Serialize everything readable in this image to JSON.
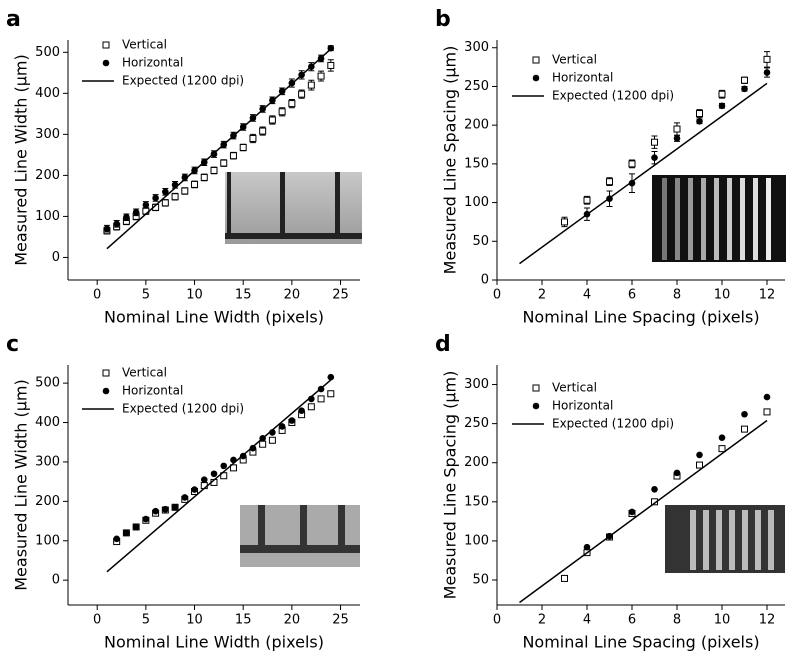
{
  "chart_data": [
    {
      "type": "scatter",
      "panel_label": "a",
      "x_label": "Nominal Line Width (pixels)",
      "y_label": "Measured Line Width (µm)",
      "xlim": [
        -3,
        27
      ],
      "xticks": [
        0,
        5,
        10,
        15,
        20,
        25
      ],
      "ylim": [
        -55,
        530
      ],
      "yticks": [
        0,
        100,
        200,
        300,
        400,
        500
      ],
      "series": [
        {
          "name": "Vertical",
          "marker": "open-square",
          "color": "#000000",
          "x": [
            1,
            2,
            3,
            4,
            5,
            6,
            7,
            8,
            9,
            10,
            11,
            12,
            13,
            14,
            15,
            16,
            17,
            18,
            19,
            20,
            21,
            22,
            23,
            24
          ],
          "values": [
            65,
            75,
            88,
            100,
            113,
            122,
            133,
            148,
            162,
            178,
            195,
            212,
            230,
            248,
            268,
            290,
            308,
            335,
            355,
            375,
            398,
            420,
            442,
            468
          ],
          "errors": [
            8,
            8,
            8,
            8,
            8,
            8,
            8,
            8,
            8,
            8,
            8,
            8,
            8,
            8,
            8,
            10,
            10,
            10,
            10,
            10,
            10,
            12,
            12,
            14
          ]
        },
        {
          "name": "Horizontal",
          "marker": "filled-circle",
          "color": "#000000",
          "x": [
            1,
            2,
            3,
            4,
            5,
            6,
            7,
            8,
            9,
            10,
            11,
            12,
            13,
            14,
            15,
            16,
            17,
            18,
            19,
            20,
            21,
            22,
            23,
            24
          ],
          "values": [
            70,
            82,
            98,
            110,
            128,
            145,
            160,
            177,
            195,
            212,
            232,
            252,
            275,
            297,
            318,
            340,
            362,
            383,
            405,
            425,
            445,
            465,
            485,
            510
          ],
          "errors": [
            8,
            8,
            8,
            8,
            8,
            8,
            8,
            8,
            8,
            8,
            8,
            8,
            8,
            8,
            8,
            8,
            8,
            8,
            8,
            10,
            10,
            10,
            8,
            6
          ]
        },
        {
          "name": "Expected (1200 dpi)",
          "marker": "line",
          "color": "#000000",
          "x": [
            1,
            24
          ],
          "values": [
            21.2,
            508
          ]
        }
      ]
    },
    {
      "type": "scatter",
      "panel_label": "b",
      "x_label": "Nominal Line Spacing (pixels)",
      "y_label": "Measured Line Spacing (µm)",
      "xlim": [
        0,
        12.8
      ],
      "xticks": [
        0,
        2,
        4,
        6,
        8,
        10,
        12
      ],
      "ylim": [
        0,
        310
      ],
      "yticks": [
        0,
        50,
        100,
        150,
        200,
        250,
        300
      ],
      "series": [
        {
          "name": "Vertical",
          "marker": "open-square",
          "color": "#000000",
          "x": [
            3,
            4,
            5,
            6,
            7,
            8,
            9,
            10,
            11,
            12
          ],
          "values": [
            75,
            103,
            127,
            150,
            178,
            195,
            215,
            240,
            258,
            285
          ],
          "errors": [
            6,
            5,
            5,
            5,
            8,
            8,
            5,
            5,
            4,
            10
          ]
        },
        {
          "name": "Horizontal",
          "marker": "filled-circle",
          "color": "#000000",
          "x": [
            4,
            5,
            6,
            7,
            8,
            9,
            10,
            11,
            12
          ],
          "values": [
            85,
            105,
            125,
            158,
            183,
            205,
            225,
            247,
            268
          ],
          "errors": [
            8,
            10,
            12,
            8,
            4,
            3,
            3,
            3,
            6
          ]
        },
        {
          "name": "Expected (1200 dpi)",
          "marker": "line",
          "color": "#000000",
          "x": [
            1,
            12
          ],
          "values": [
            21.2,
            254
          ]
        }
      ]
    },
    {
      "type": "scatter",
      "panel_label": "c",
      "x_label": "Nominal Line Width (pixels)",
      "y_label": "Measured Line Width (µm)",
      "xlim": [
        -3,
        27
      ],
      "xticks": [
        0,
        5,
        10,
        15,
        20,
        25
      ],
      "ylim": [
        -63,
        546
      ],
      "yticks": [
        0,
        100,
        200,
        300,
        400,
        500
      ],
      "series": [
        {
          "name": "Vertical",
          "marker": "open-square",
          "color": "#000000",
          "x": [
            2,
            3,
            4,
            5,
            6,
            7,
            8,
            9,
            10,
            11,
            12,
            13,
            14,
            15,
            16,
            17,
            18,
            19,
            20,
            21,
            22,
            23,
            24
          ],
          "values": [
            98,
            120,
            135,
            152,
            170,
            178,
            185,
            205,
            225,
            240,
            248,
            265,
            285,
            305,
            325,
            345,
            355,
            380,
            400,
            420,
            440,
            460,
            473
          ]
        },
        {
          "name": "Horizontal",
          "marker": "filled-circle",
          "color": "#000000",
          "x": [
            2,
            3,
            4,
            5,
            6,
            7,
            8,
            9,
            10,
            11,
            12,
            13,
            14,
            15,
            16,
            17,
            18,
            19,
            20,
            21,
            22,
            23,
            24
          ],
          "values": [
            105,
            120,
            135,
            155,
            175,
            180,
            185,
            210,
            230,
            255,
            270,
            290,
            305,
            315,
            335,
            360,
            375,
            390,
            405,
            430,
            460,
            485,
            515
          ]
        },
        {
          "name": "Expected (1200 dpi)",
          "marker": "line",
          "color": "#000000",
          "x": [
            1,
            24
          ],
          "values": [
            21.2,
            508
          ]
        }
      ]
    },
    {
      "type": "scatter",
      "panel_label": "d",
      "x_label": "Nominal Line Spacing (pixels)",
      "y_label": "Measured Line Spacing (µm)",
      "xlim": [
        0,
        12.8
      ],
      "xticks": [
        0,
        2,
        4,
        6,
        8,
        10,
        12
      ],
      "ylim": [
        18,
        325
      ],
      "yticks": [
        50,
        100,
        150,
        200,
        250,
        300
      ],
      "series": [
        {
          "name": "Vertical",
          "marker": "open-square",
          "color": "#000000",
          "x": [
            3,
            4,
            5,
            6,
            7,
            8,
            9,
            10,
            11,
            12
          ],
          "values": [
            52,
            85,
            105,
            135,
            150,
            183,
            197,
            218,
            243,
            265
          ]
        },
        {
          "name": "Horizontal",
          "marker": "filled-circle",
          "color": "#000000",
          "x": [
            4,
            5,
            6,
            7,
            8,
            9,
            10,
            11,
            12
          ],
          "values": [
            92,
            106,
            137,
            166,
            187,
            210,
            232,
            262,
            284
          ]
        },
        {
          "name": "Expected (1200 dpi)",
          "marker": "line",
          "color": "#000000",
          "x": [
            1,
            12
          ],
          "values": [
            21.2,
            254
          ]
        }
      ]
    }
  ]
}
